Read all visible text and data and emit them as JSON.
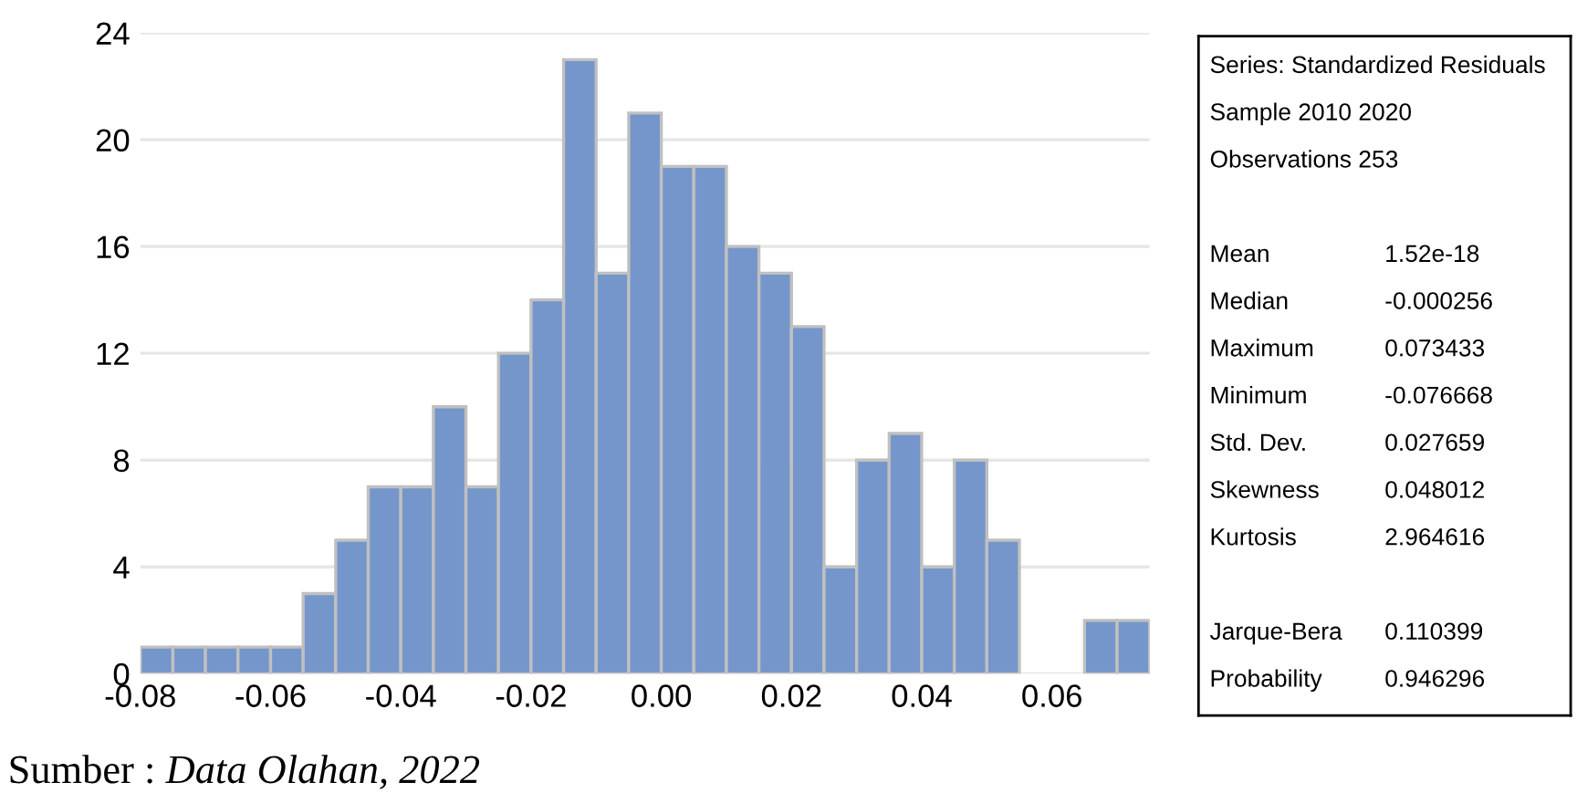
{
  "chart_data": [
    {
      "type": "histogram",
      "bins": [
        -0.08,
        -0.075,
        -0.07,
        -0.065,
        -0.06,
        -0.055,
        -0.05,
        -0.045,
        -0.04,
        -0.035,
        -0.03,
        -0.025,
        -0.02,
        -0.015,
        -0.01,
        -0.005,
        0.0,
        0.005,
        0.01,
        0.015,
        0.02,
        0.025,
        0.03,
        0.035,
        0.04,
        0.045,
        0.05,
        0.055,
        0.06,
        0.065,
        0.07,
        0.075
      ],
      "values": [
        1,
        1,
        1,
        1,
        1,
        3,
        5,
        7,
        7,
        10,
        7,
        12,
        14,
        23,
        15,
        21,
        19,
        19,
        16,
        15,
        13,
        4,
        8,
        9,
        4,
        8,
        5,
        0,
        0,
        2,
        2
      ],
      "color": "#7596cb",
      "xlim": [
        -0.08,
        0.075
      ],
      "xticks": [
        {
          "value": -0.08,
          "label": "-0.08"
        },
        {
          "value": -0.06,
          "label": "-0.06"
        },
        {
          "value": -0.04,
          "label": "-0.04"
        },
        {
          "value": -0.02,
          "label": "-0.02"
        },
        {
          "value": 0.0,
          "label": "0.00"
        },
        {
          "value": 0.02,
          "label": "0.02"
        },
        {
          "value": 0.04,
          "label": "0.04"
        },
        {
          "value": 0.06,
          "label": "0.06"
        }
      ],
      "ylim": [
        0,
        24
      ],
      "yticks": [
        0,
        4,
        8,
        12,
        16,
        20,
        24
      ],
      "grid": "y",
      "annotations": [
        "Sumber : Data Olahan, 2022"
      ]
    },
    {
      "type": "other",
      "annotations": [
        "Series: Standardized Residuals",
        "Sample 2010 2020",
        "Observations 253",
        "Mean\t1.52e-18",
        "Median\t-0.000256",
        "Maximum\t0.073433",
        "Minimum\t-0.076668",
        "Std. Dev.\t0.027659",
        "Skewness\t0.048012",
        "Kurtosis\t2.964616",
        "Jarque-Bera\t0.110399",
        "Probability\t0.946296"
      ]
    }
  ]
}
